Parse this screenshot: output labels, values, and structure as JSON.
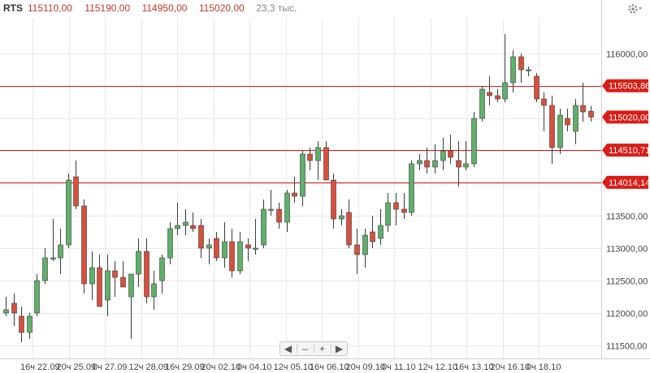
{
  "header": {
    "symbol": "RTS",
    "open": "115110,00",
    "high": "115190,00",
    "low": "114950,00",
    "close": "115020,00",
    "volume": "23,3 тыс."
  },
  "colors": {
    "up": "#5fb06a",
    "down": "#d7503c",
    "level": "#d91e18",
    "grid": "#e9e9e9",
    "axis_text": "#444444",
    "header_symbol": "#333333",
    "header_value": "#c0392b",
    "header_volume": "#7f8c8d"
  },
  "navigator": {
    "left": "◀",
    "minus": "–",
    "plus": "+",
    "right": "▶"
  },
  "chart_data": {
    "type": "candlestick",
    "ylim": [
      111300,
      116550
    ],
    "y_ticks": [
      111500,
      112000,
      112500,
      113000,
      113500,
      114000,
      114500,
      115000,
      115500,
      116000
    ],
    "y_tick_labels": [
      "111500,00",
      "112000,00",
      "112500,00",
      "113000,00",
      "113500,00",
      "114000,00",
      "114500,00",
      "115000,00",
      "115500,00",
      "116000,00"
    ],
    "levels": [
      {
        "value": 115503.86,
        "label": "115503,86"
      },
      {
        "value": 115020.0,
        "label": "115020,00"
      },
      {
        "value": 114510.71,
        "label": "114510,71"
      },
      {
        "value": 114014.14,
        "label": "114014,14"
      }
    ],
    "level_lines": [
      115503.86,
      114510.71,
      114014.14
    ],
    "x_labels": [
      "16ч 22.09",
      "20ч 25.09",
      "0ч 27.09",
      "12ч 28.09",
      "16ч 29.09",
      "20ч 02.10",
      "0ч 04.10",
      "12ч 05.10",
      "16ч 06.10",
      "20ч 09.10",
      "0ч 11.10",
      "12ч 12.10",
      "16ч 13.10",
      "20ч 16.10",
      "0ч 18.10"
    ],
    "candles": [
      {
        "o": 112000,
        "h": 112250,
        "l": 111950,
        "c": 112050
      },
      {
        "o": 112150,
        "h": 112300,
        "l": 111800,
        "c": 112000
      },
      {
        "o": 111950,
        "h": 112100,
        "l": 111550,
        "c": 111700
      },
      {
        "o": 111700,
        "h": 112000,
        "l": 111600,
        "c": 111950
      },
      {
        "o": 112000,
        "h": 112600,
        "l": 111950,
        "c": 112500
      },
      {
        "o": 112500,
        "h": 113000,
        "l": 112450,
        "c": 112850
      },
      {
        "o": 112850,
        "h": 113450,
        "l": 112800,
        "c": 112850
      },
      {
        "o": 112850,
        "h": 113300,
        "l": 112600,
        "c": 113050
      },
      {
        "o": 113050,
        "h": 114150,
        "l": 113000,
        "c": 114050
      },
      {
        "o": 114100,
        "h": 114350,
        "l": 113600,
        "c": 113650
      },
      {
        "o": 113650,
        "h": 113750,
        "l": 112300,
        "c": 112450
      },
      {
        "o": 112450,
        "h": 112950,
        "l": 112200,
        "c": 112700
      },
      {
        "o": 112700,
        "h": 112900,
        "l": 112100,
        "c": 112100
      },
      {
        "o": 112200,
        "h": 112900,
        "l": 111950,
        "c": 112650
      },
      {
        "o": 112650,
        "h": 112800,
        "l": 112250,
        "c": 112550
      },
      {
        "o": 112550,
        "h": 112800,
        "l": 112400,
        "c": 112400
      },
      {
        "o": 112250,
        "h": 112600,
        "l": 111600,
        "c": 112600
      },
      {
        "o": 112600,
        "h": 113150,
        "l": 112400,
        "c": 112950
      },
      {
        "o": 112950,
        "h": 113150,
        "l": 112150,
        "c": 112250
      },
      {
        "o": 112250,
        "h": 112650,
        "l": 112050,
        "c": 112450
      },
      {
        "o": 112500,
        "h": 112900,
        "l": 112300,
        "c": 112850
      },
      {
        "o": 112850,
        "h": 113400,
        "l": 112750,
        "c": 113300
      },
      {
        "o": 113300,
        "h": 113700,
        "l": 113200,
        "c": 113350
      },
      {
        "o": 113350,
        "h": 113600,
        "l": 113200,
        "c": 113400
      },
      {
        "o": 113350,
        "h": 113550,
        "l": 113250,
        "c": 113300
      },
      {
        "o": 113350,
        "h": 113450,
        "l": 112850,
        "c": 113000
      },
      {
        "o": 113000,
        "h": 113150,
        "l": 112750,
        "c": 113050
      },
      {
        "o": 113150,
        "h": 113250,
        "l": 112800,
        "c": 112850
      },
      {
        "o": 112850,
        "h": 113400,
        "l": 112700,
        "c": 113100
      },
      {
        "o": 113100,
        "h": 113300,
        "l": 112550,
        "c": 112650
      },
      {
        "o": 112650,
        "h": 113250,
        "l": 112600,
        "c": 113100
      },
      {
        "o": 113050,
        "h": 113150,
        "l": 112800,
        "c": 113000
      },
      {
        "o": 113000,
        "h": 113450,
        "l": 112900,
        "c": 113000
      },
      {
        "o": 113050,
        "h": 113750,
        "l": 113000,
        "c": 113600
      },
      {
        "o": 113600,
        "h": 113900,
        "l": 113500,
        "c": 113600
      },
      {
        "o": 113600,
        "h": 113700,
        "l": 113300,
        "c": 113400
      },
      {
        "o": 113400,
        "h": 113900,
        "l": 113250,
        "c": 113850
      },
      {
        "o": 113850,
        "h": 114100,
        "l": 113700,
        "c": 113800
      },
      {
        "o": 113800,
        "h": 114500,
        "l": 113650,
        "c": 114450
      },
      {
        "o": 114450,
        "h": 114550,
        "l": 114200,
        "c": 114350
      },
      {
        "o": 114350,
        "h": 114650,
        "l": 114050,
        "c": 114550
      },
      {
        "o": 114550,
        "h": 114650,
        "l": 114050,
        "c": 114050
      },
      {
        "o": 114050,
        "h": 114150,
        "l": 113300,
        "c": 113450
      },
      {
        "o": 113450,
        "h": 113600,
        "l": 113350,
        "c": 113500
      },
      {
        "o": 113550,
        "h": 113750,
        "l": 113000,
        "c": 113050
      },
      {
        "o": 113050,
        "h": 113300,
        "l": 112600,
        "c": 112900
      },
      {
        "o": 112900,
        "h": 113300,
        "l": 112700,
        "c": 113200
      },
      {
        "o": 113250,
        "h": 113500,
        "l": 113000,
        "c": 113100
      },
      {
        "o": 113150,
        "h": 113600,
        "l": 113050,
        "c": 113350
      },
      {
        "o": 113350,
        "h": 113850,
        "l": 113250,
        "c": 113700
      },
      {
        "o": 113700,
        "h": 113850,
        "l": 113350,
        "c": 113600
      },
      {
        "o": 113600,
        "h": 113850,
        "l": 113450,
        "c": 113550
      },
      {
        "o": 113550,
        "h": 114350,
        "l": 113500,
        "c": 114300
      },
      {
        "o": 114300,
        "h": 114450,
        "l": 114200,
        "c": 114350
      },
      {
        "o": 114350,
        "h": 114550,
        "l": 114150,
        "c": 114250
      },
      {
        "o": 114250,
        "h": 114600,
        "l": 114150,
        "c": 114350
      },
      {
        "o": 114350,
        "h": 114700,
        "l": 114200,
        "c": 114500
      },
      {
        "o": 114500,
        "h": 114750,
        "l": 114300,
        "c": 114400
      },
      {
        "o": 114350,
        "h": 114650,
        "l": 113950,
        "c": 114250
      },
      {
        "o": 114250,
        "h": 114650,
        "l": 114200,
        "c": 114300
      },
      {
        "o": 114300,
        "h": 115100,
        "l": 114250,
        "c": 115000
      },
      {
        "o": 115000,
        "h": 115500,
        "l": 114950,
        "c": 115450
      },
      {
        "o": 115400,
        "h": 115650,
        "l": 115200,
        "c": 115350
      },
      {
        "o": 115350,
        "h": 115450,
        "l": 115250,
        "c": 115300
      },
      {
        "o": 115300,
        "h": 116300,
        "l": 115250,
        "c": 115550
      },
      {
        "o": 115550,
        "h": 116050,
        "l": 115400,
        "c": 115950
      },
      {
        "o": 115950,
        "h": 116000,
        "l": 115550,
        "c": 115750
      },
      {
        "o": 115750,
        "h": 115800,
        "l": 115650,
        "c": 115750
      },
      {
        "o": 115650,
        "h": 115700,
        "l": 115250,
        "c": 115300
      },
      {
        "o": 115300,
        "h": 115400,
        "l": 114800,
        "c": 115200
      },
      {
        "o": 115200,
        "h": 115350,
        "l": 114300,
        "c": 114550
      },
      {
        "o": 114550,
        "h": 115150,
        "l": 114450,
        "c": 115050
      },
      {
        "o": 115000,
        "h": 115150,
        "l": 114800,
        "c": 114900
      },
      {
        "o": 114800,
        "h": 115300,
        "l": 114600,
        "c": 115200
      },
      {
        "o": 115200,
        "h": 115550,
        "l": 114950,
        "c": 115100
      },
      {
        "o": 115110,
        "h": 115190,
        "l": 114950,
        "c": 115020
      }
    ]
  }
}
